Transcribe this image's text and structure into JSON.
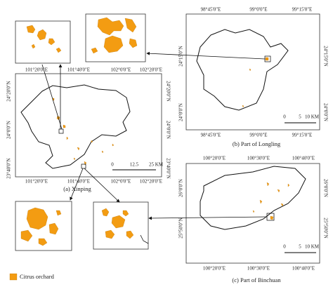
{
  "panels": [
    {
      "caption": "(a) Xinping",
      "top_labels": [
        "101°20'0\"E",
        "101°40'0\"E",
        "102°0'0\"E",
        "102°20'0\"E"
      ],
      "bottom_labels": [
        "101°20'0\"E",
        "101°40'0\"E",
        "102°0'0\"E",
        "102°20'0\"E"
      ],
      "left_labels": [
        "24°20'0\"N",
        "24°0'0\"N",
        "23°40'0\"N"
      ],
      "right_labels": [
        "24°20'0\"N",
        "24°0'0\"N",
        "23°40'0\"N"
      ],
      "scale": [
        "0",
        "12.5",
        "25 KM"
      ]
    },
    {
      "caption": "(b) Part of Longling",
      "top_labels": [
        "98°45'0\"E",
        "99°0'0\"E",
        "99°15'0\"E"
      ],
      "bottom_labels": [
        "98°45'0\"E",
        "99°0'0\"E",
        "99°15'0\"E"
      ],
      "left_labels": [
        "24°15'0\"N",
        "24°0'0\"N"
      ],
      "right_labels": [
        "24°15'0\"N",
        "24°0'0\"N"
      ],
      "scale": [
        "0",
        "5",
        "10 KM"
      ]
    },
    {
      "caption": "(c) Part of Binchuan",
      "top_labels": [
        "100°20'0\"E",
        "100°30'0\"E",
        "100°40'0\"E"
      ],
      "bottom_labels": [
        "100°20'0\"E",
        "100°30'0\"E",
        "100°40'0\"E"
      ],
      "left_labels": [
        "26°0'0\"N",
        "25°50'0\"N"
      ],
      "right_labels": [
        "26°0'0\"N",
        "25°50'0\"N"
      ],
      "scale": [
        "0",
        "5",
        "10 KM"
      ]
    }
  ],
  "legend": {
    "label": "Citrus orchard"
  }
}
